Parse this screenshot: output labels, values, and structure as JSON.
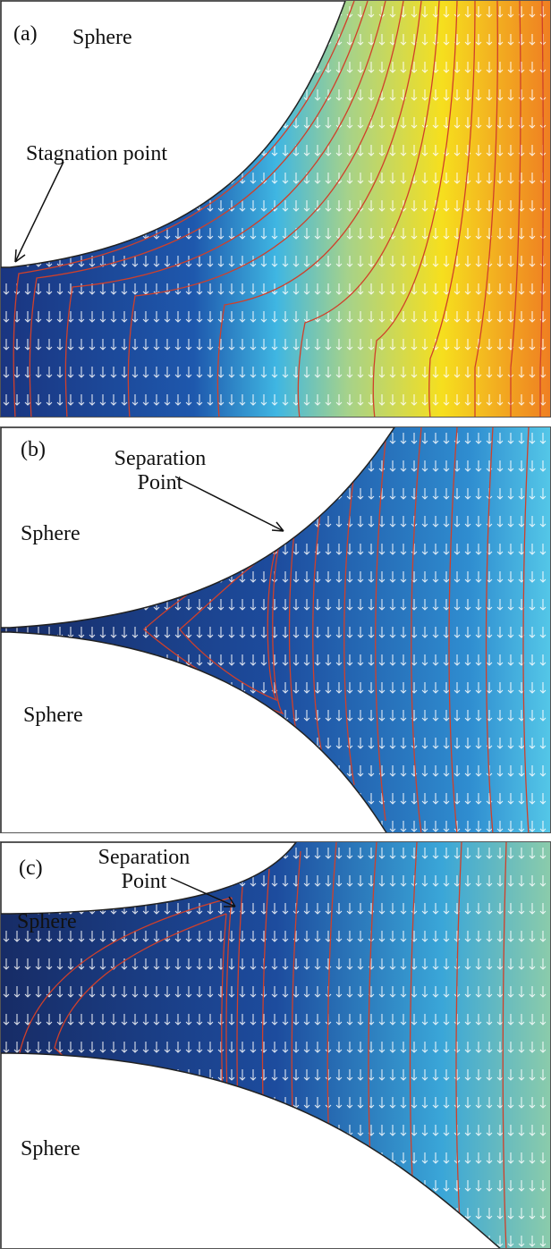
{
  "panels": [
    {
      "label": "(a)",
      "sphere": "Sphere",
      "annotation": "Stagnation point"
    },
    {
      "label": "(b)",
      "annotation": "Separation Point",
      "sphere_upper": "Sphere",
      "sphere_lower": "Sphere"
    },
    {
      "label": "(c)",
      "annotation": "Separation Point",
      "sphere_upper": "Sphere",
      "sphere_lower": "Sphere"
    }
  ]
}
